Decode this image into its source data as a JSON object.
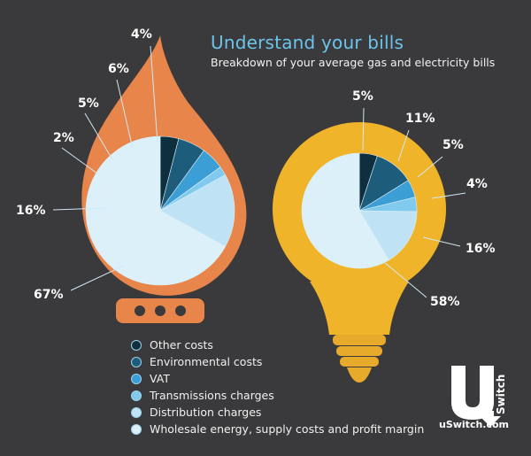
{
  "title": "Understand your bills",
  "subtitle": "Breakdown of your average gas and electricity bills",
  "colors": {
    "background": "#3a3a3c",
    "gas_shape": "#e8854a",
    "bulb_shape": "#f0b42b",
    "bulb_base": "#e8aa2a"
  },
  "chart_data": [
    {
      "type": "pie",
      "name": "Gas",
      "slices": [
        {
          "category": "Other costs",
          "value": 4,
          "label": "4%",
          "color": "#0e2f3e"
        },
        {
          "category": "Environmental costs",
          "value": 6,
          "label": "6%",
          "color": "#1e5c7c"
        },
        {
          "category": "VAT",
          "value": 5,
          "label": "5%",
          "color": "#3b9ed5"
        },
        {
          "category": "Transmissions charges",
          "value": 2,
          "label": "2%",
          "color": "#82c9ee"
        },
        {
          "category": "Distribution charges",
          "value": 16,
          "label": "16%",
          "color": "#bfe3f4"
        },
        {
          "category": "Wholesale energy, supply costs and profit margin",
          "value": 67,
          "label": "67%",
          "color": "#dcf0fa"
        }
      ]
    },
    {
      "type": "pie",
      "name": "Electricity",
      "slices": [
        {
          "category": "Other costs",
          "value": 5,
          "label": "5%",
          "color": "#0e2f3e"
        },
        {
          "category": "Environmental costs",
          "value": 11,
          "label": "11%",
          "color": "#1e5c7c"
        },
        {
          "category": "VAT",
          "value": 5,
          "label": "5%",
          "color": "#3b9ed5"
        },
        {
          "category": "Transmissions charges",
          "value": 4,
          "label": "4%",
          "color": "#82c9ee"
        },
        {
          "category": "Distribution charges",
          "value": 16,
          "label": "16%",
          "color": "#bfe3f4"
        },
        {
          "category": "Wholesale energy, supply costs and profit margin",
          "value": 58,
          "label": "58%",
          "color": "#dcf0fa"
        }
      ]
    }
  ],
  "legend": [
    {
      "label": "Other costs",
      "color": "#0e2f3e"
    },
    {
      "label": "Environmental costs",
      "color": "#1e5c7c"
    },
    {
      "label": "VAT",
      "color": "#3b9ed5"
    },
    {
      "label": "Transmissions charges",
      "color": "#82c9ee"
    },
    {
      "label": "Distribution charges",
      "color": "#bfe3f4"
    },
    {
      "label": "Wholesale energy, supply costs and profit margin",
      "color": "#dcf0fa"
    }
  ],
  "logo": {
    "name": "uswitch-logo",
    "text": "uSwitch.com",
    "mark_letter": "U",
    "mark_word": "Switch"
  }
}
